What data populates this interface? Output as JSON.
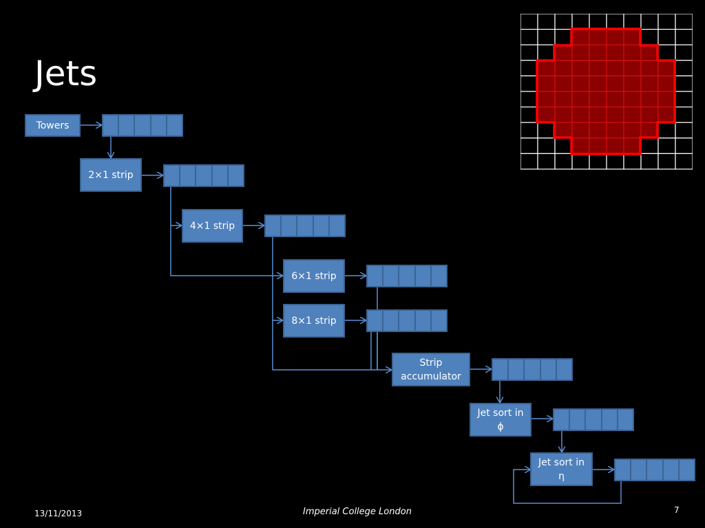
{
  "slide": {
    "title": "Jets",
    "date": "13/11/2013",
    "institution": "Imperial College London",
    "page_number": "7"
  },
  "blocks": {
    "towers": "Towers",
    "strip2x1": "2×1 strip",
    "strip4x1": "4×1 strip",
    "strip6x1": "6×1 strip",
    "strip8x1": "8×1 strip",
    "accumulator_line1": "Strip",
    "accumulator_line2": "accumulator",
    "sort_phi_line1": "Jet sort in",
    "sort_phi_line2": "ϕ",
    "sort_eta_line1": "Jet sort in",
    "sort_eta_line2": "η"
  },
  "colors": {
    "block_fill": "#4f81bd",
    "block_border": "#3a6494",
    "wire": "#5b8fd6",
    "jet_fill": "#8b0000",
    "jet_outline": "#ff0000",
    "grid_line": "#ffffff"
  }
}
